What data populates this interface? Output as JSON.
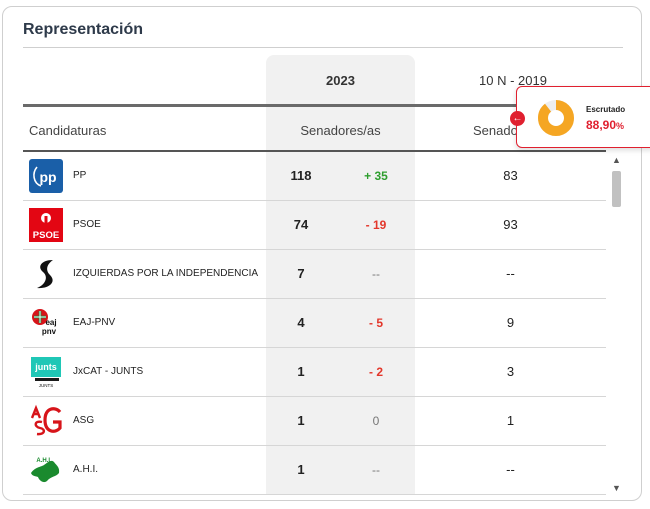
{
  "section": {
    "title": "Representación"
  },
  "columns": {
    "year_current": "2023",
    "year_previous": "10 N - 2019",
    "candidaturas": "Candidaturas",
    "senadores_current": "Senadores/as",
    "senadores_previous": "Senado"
  },
  "rows": [
    {
      "name": "PP",
      "seats_2023": "118",
      "diff": "+ 35",
      "diff_type": "pos",
      "seats_2019": "83",
      "logo": "pp-logo"
    },
    {
      "name": "PSOE",
      "seats_2023": "74",
      "diff": "- 19",
      "diff_type": "neg",
      "seats_2019": "93",
      "logo": "psoe-logo"
    },
    {
      "name": "IZQUIERDAS POR LA INDEPENDENCIA",
      "seats_2023": "7",
      "diff": "--",
      "diff_type": "neu",
      "seats_2019": "--",
      "logo": "izquierdas-logo"
    },
    {
      "name": "EAJ-PNV",
      "seats_2023": "4",
      "diff": "- 5",
      "diff_type": "neg",
      "seats_2019": "9",
      "logo": "eaj-pnv-logo"
    },
    {
      "name": "JxCAT - JUNTS",
      "seats_2023": "1",
      "diff": "- 2",
      "diff_type": "neg",
      "seats_2019": "3",
      "logo": "junts-logo"
    },
    {
      "name": "ASG",
      "seats_2023": "1",
      "diff": "0",
      "diff_type": "neu",
      "seats_2019": "1",
      "logo": "asg-logo"
    },
    {
      "name": "A.H.I.",
      "seats_2023": "1",
      "diff": "--",
      "diff_type": "neu",
      "seats_2019": "--",
      "logo": "ahi-logo"
    }
  ],
  "logo_text": {
    "psoe": "PSOE",
    "eaj_top": "eaj",
    "eaj_bottom": "pnv",
    "junts_top": "junts",
    "junts_bottom": "JUNTS",
    "ahi": "A.H.I."
  },
  "scrutiny": {
    "label": "Escrutado",
    "value": "88,90",
    "unit": "%",
    "fraction": 0.889,
    "color": "#f5a623"
  },
  "colors": {
    "accent_red": "#e0202f",
    "positive": "#2e9e2e",
    "negative": "#e3372b",
    "pp_blue": "#1a5fa8",
    "psoe_red": "#e30613"
  }
}
